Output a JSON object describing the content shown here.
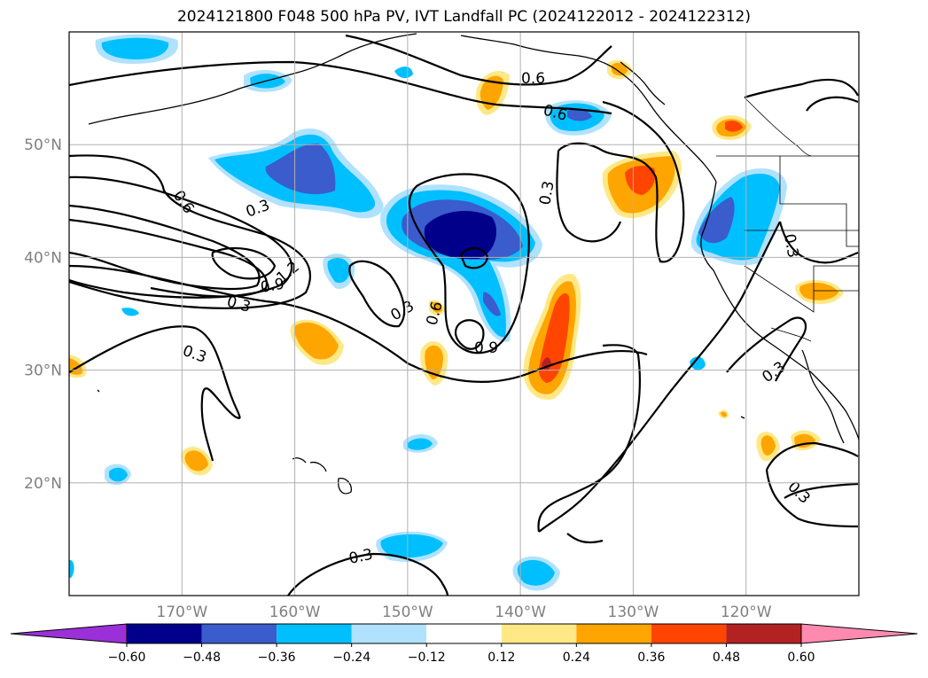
{
  "title": "2024121800 F048 500 hPa PV, IVT Landfall PC (2024122012 - 2024122312)",
  "map": {
    "lon_range": [
      -180,
      -110
    ],
    "lat_range": [
      10,
      60
    ],
    "lat_ticks": [
      {
        "value": 20,
        "label": "20°N"
      },
      {
        "value": 30,
        "label": "30°N"
      },
      {
        "value": 40,
        "label": "40°N"
      },
      {
        "value": 50,
        "label": "50°N"
      }
    ],
    "lon_ticks": [
      {
        "value": -170,
        "label": "170°W"
      },
      {
        "value": -160,
        "label": "160°W"
      },
      {
        "value": -150,
        "label": "150°W"
      },
      {
        "value": -140,
        "label": "140°W"
      },
      {
        "value": -130,
        "label": "130°W"
      },
      {
        "value": -120,
        "label": "120°W"
      }
    ],
    "contour_labels": [
      "0.6",
      "0.6",
      "0.6",
      "0.3",
      "0.3",
      "0.9",
      "1.2",
      "0.3",
      "0.3",
      "0.3",
      "0.6",
      "0.9",
      "0.3",
      "0.3",
      "0.3",
      "0.3"
    ]
  },
  "colorbar": {
    "labels": [
      "−0.60",
      "−0.48",
      "−0.36",
      "−0.24",
      "−0.12",
      "0.12",
      "0.24",
      "0.36",
      "0.48",
      "0.60"
    ],
    "colors": {
      "under": "#9b30d9",
      "bins": [
        "#00008b",
        "#3a5ccc",
        "#00bfff",
        "#b0e2ff",
        "#ffffff",
        "#ffe885",
        "#ffa500",
        "#ff4500",
        "#b22222"
      ],
      "over": "#ff8ab0"
    }
  }
}
